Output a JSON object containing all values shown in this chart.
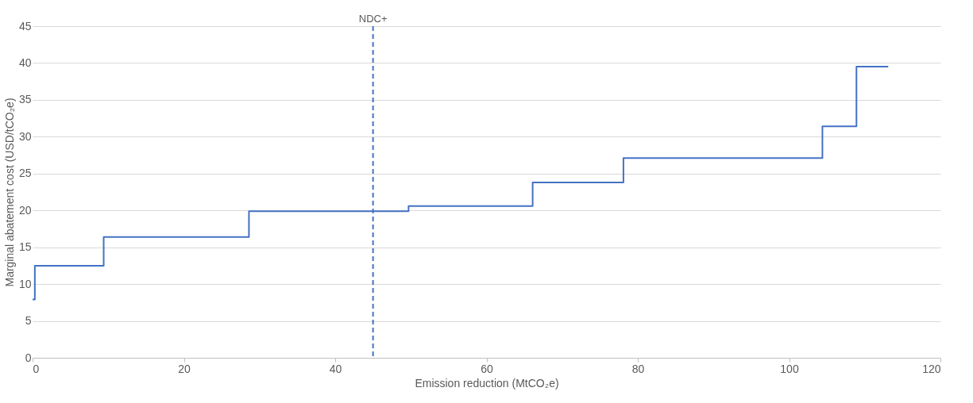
{
  "chart_data": {
    "type": "step",
    "xlabel": "Emission reduction (MtCO₂e)",
    "ylabel": "Marginal abatement cost (USD/tCO₂e)",
    "x": [
      0,
      0.3,
      9.4,
      28.6,
      49.7,
      66.1,
      78.1,
      104.4,
      108.9,
      113.1
    ],
    "series": [
      {
        "color": "#4472c4",
        "values": [
          7.9,
          12.5,
          16.4,
          19.9,
          20.6,
          23.8,
          27.1,
          31.4,
          39.5,
          39.5
        ]
      }
    ],
    "xlim": [
      0,
      120
    ],
    "xticks": [
      0,
      20,
      40,
      60,
      80,
      100,
      120
    ],
    "ylim": [
      0,
      45
    ],
    "yticks": [
      0,
      5,
      10,
      15,
      20,
      25,
      30,
      35,
      40,
      45
    ],
    "grid": "y",
    "marker": "none",
    "line_style": "solid",
    "ref_lines": [
      {
        "axis": "x",
        "value": 45,
        "label": "NDC+",
        "color": "#4472c4",
        "line_style": "dashed"
      }
    ]
  }
}
